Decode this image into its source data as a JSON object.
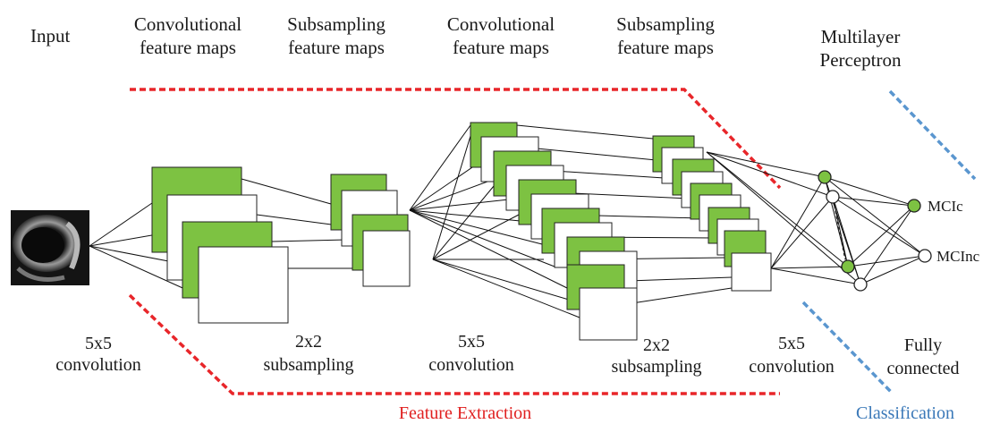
{
  "stage_titles": {
    "input": "Input",
    "conv1": [
      "Convolutional",
      "feature maps"
    ],
    "sub1": [
      "Subsampling",
      "feature maps"
    ],
    "conv2": [
      "Convolutional",
      "feature maps"
    ],
    "sub2": [
      "Subsampling",
      "feature maps"
    ],
    "mlp": [
      "Multilayer",
      "Perceptron"
    ]
  },
  "operations": {
    "op1": [
      "5x5",
      "convolution"
    ],
    "op2": [
      "2x2",
      "subsampling"
    ],
    "op3": [
      "5x5",
      "convolution"
    ],
    "op4": [
      "2x2",
      "subsampling"
    ],
    "op5": [
      "5x5",
      "convolution"
    ],
    "op6": [
      "Fully",
      "connected"
    ]
  },
  "sections": {
    "feature_extraction": "Feature Extraction",
    "classification": "Classification"
  },
  "outputs": {
    "class_1": "MCIc",
    "class_2": "MCInc"
  },
  "colors": {
    "map_fill": "#7dc242",
    "feature_extraction_dash": "#e8262a",
    "classification_dash": "#5a96cf"
  }
}
